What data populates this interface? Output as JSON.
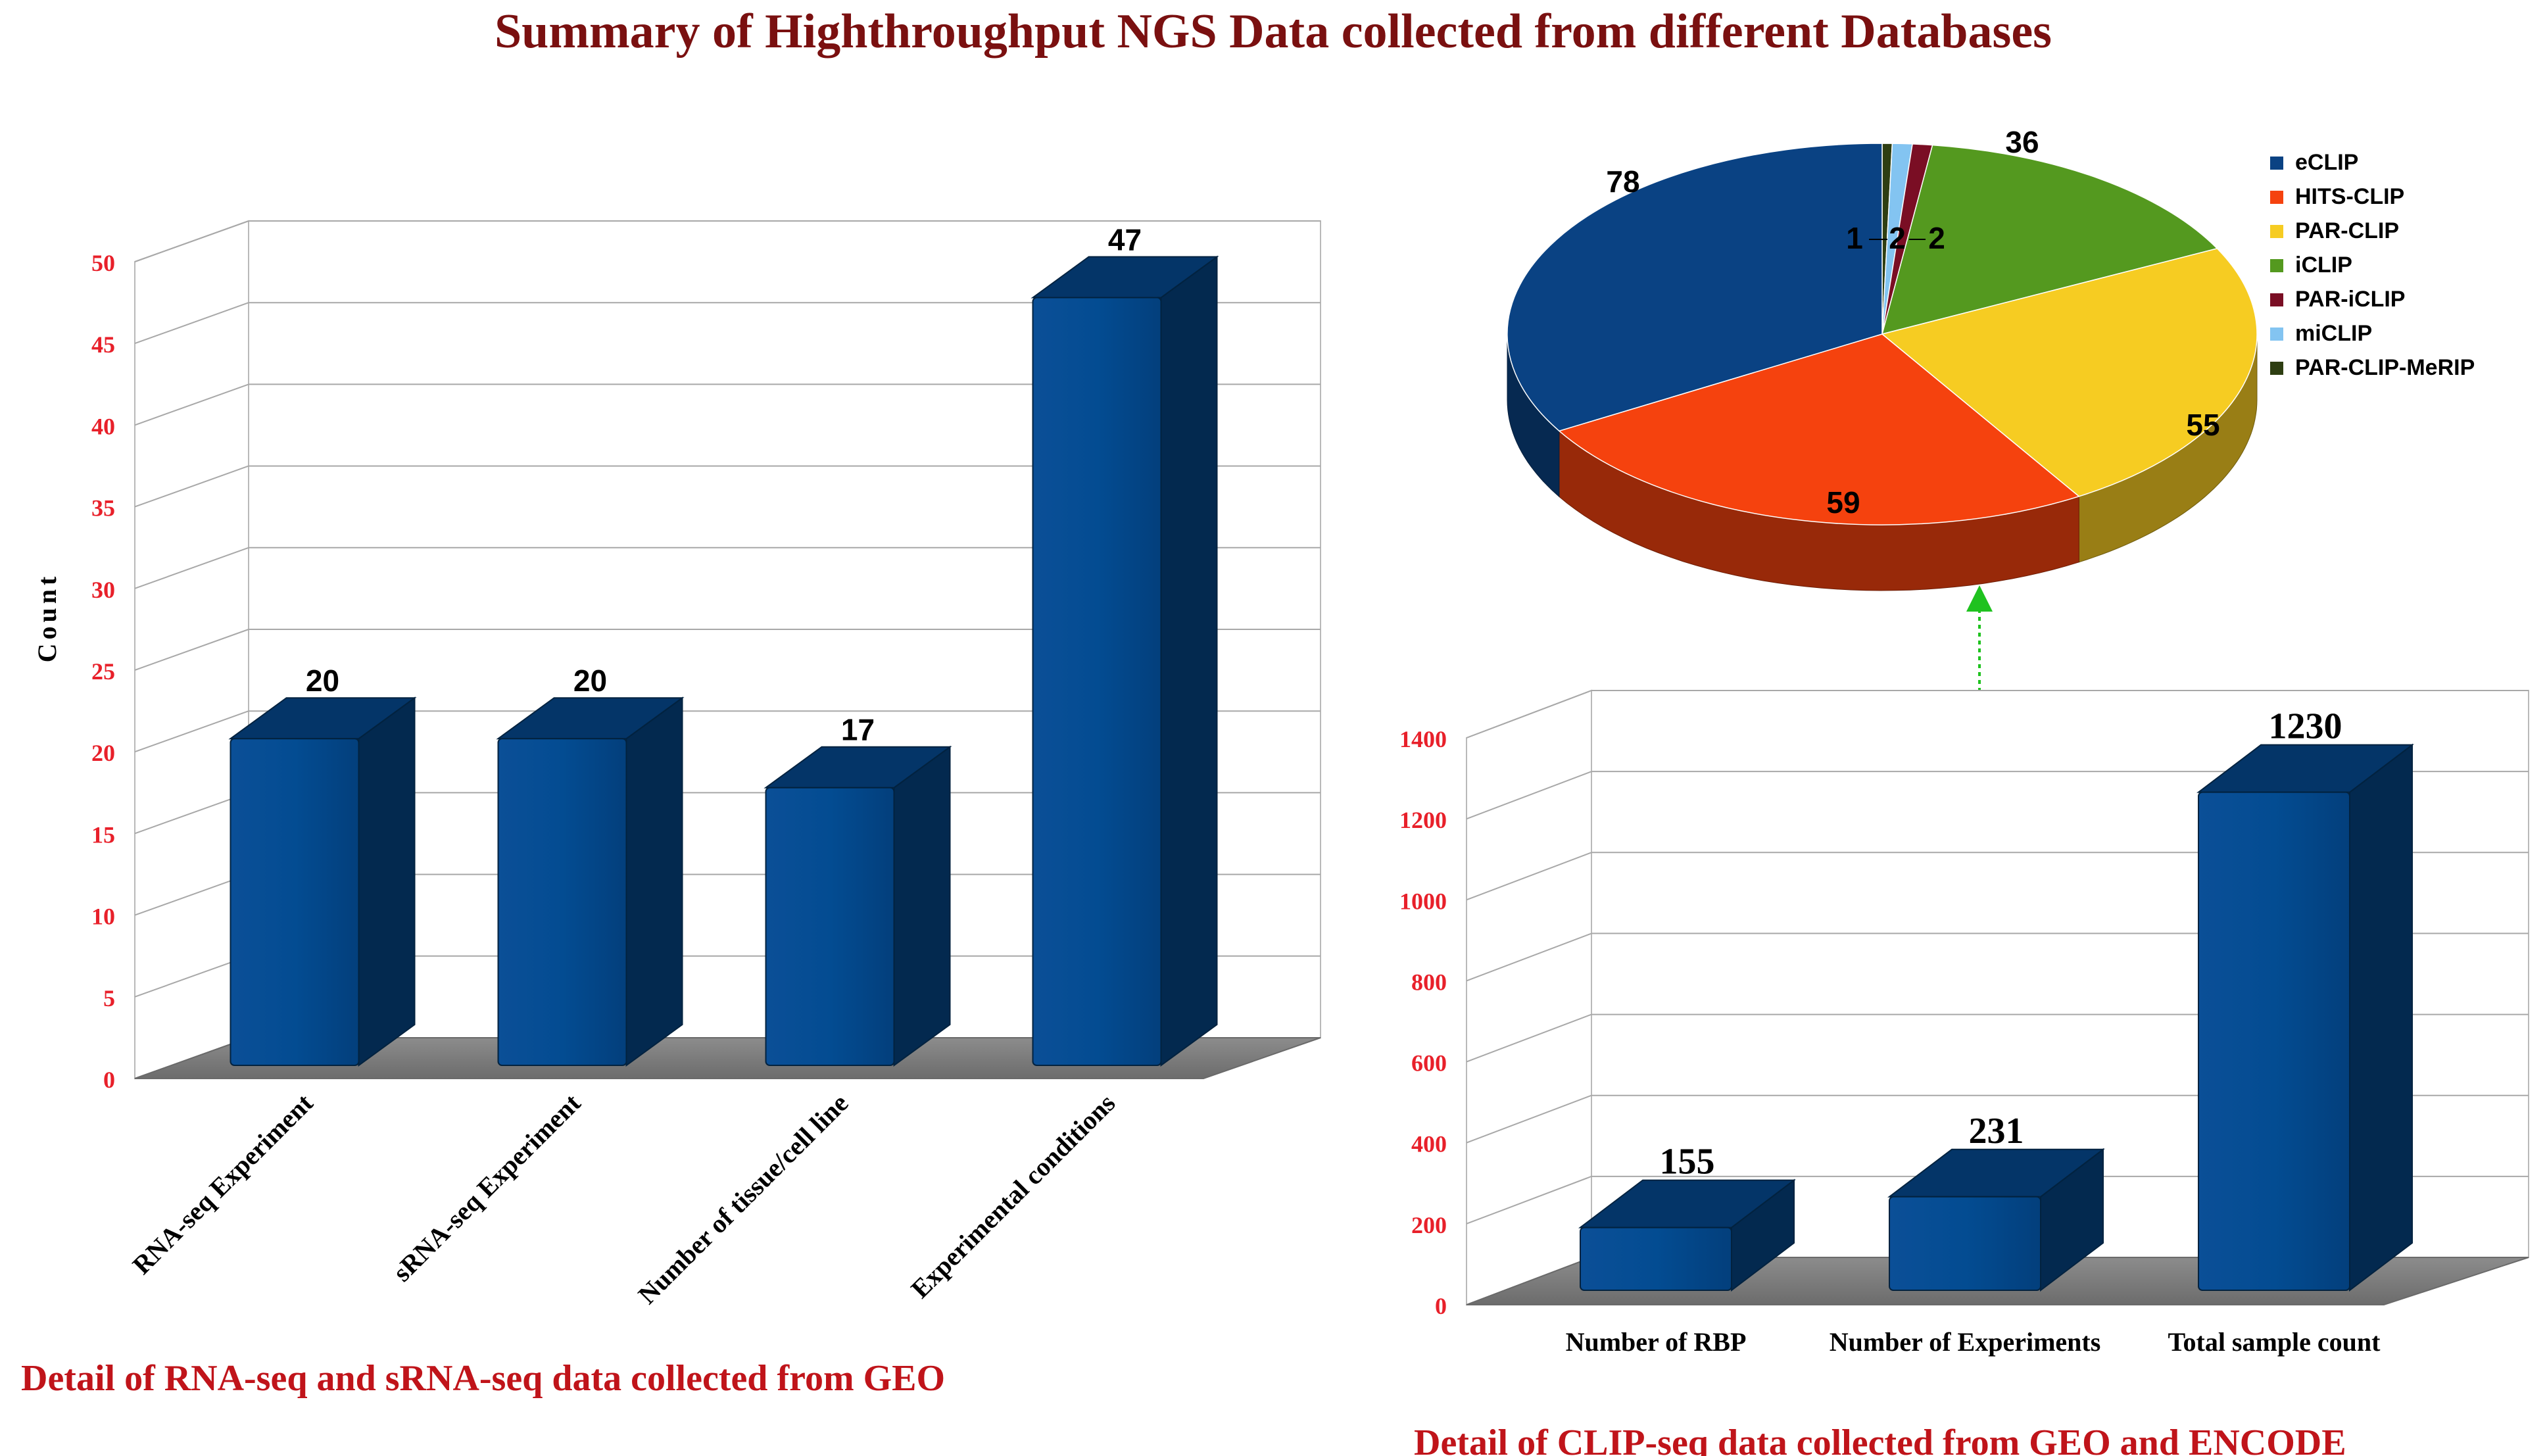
{
  "page": {
    "title": "Summary of Highthroughput NGS Data collected from different Databases",
    "title_color": "#7a1010",
    "caption_color": "#c0141a"
  },
  "chart_data": [
    {
      "type": "bar",
      "id": "geo-bar",
      "title": "",
      "caption": "Detail of RNA-seq and sRNA-seq data collected from GEO",
      "categories": [
        "RNA-seq Experiment",
        "sRNA-seq Experiment",
        "Number of tissue/cell line",
        "Experimental conditions"
      ],
      "values": [
        20,
        20,
        17,
        47
      ],
      "xlabel": "",
      "ylabel": "Count",
      "ylim": [
        0,
        50
      ],
      "yticks": [
        0,
        5,
        10,
        15,
        20,
        25,
        30,
        35,
        40,
        45,
        50
      ],
      "grid": true,
      "bar_color": "#054a90",
      "tick_color": "#e8202a"
    },
    {
      "type": "pie",
      "id": "clip-pie",
      "title": "",
      "legend_position": "right",
      "slices": [
        {
          "label": "eCLIP",
          "value": 78,
          "color": "#0a4283"
        },
        {
          "label": "HITS-CLIP",
          "value": 59,
          "color": "#f5420e"
        },
        {
          "label": "PAR-CLIP",
          "value": 55,
          "color": "#f6cc22"
        },
        {
          "label": "iCLIP",
          "value": 36,
          "color": "#54991f"
        },
        {
          "label": "PAR-iCLIP",
          "value": 2,
          "color": "#7a0e24"
        },
        {
          "label": "miCLIP",
          "value": 2,
          "color": "#83c4f1"
        },
        {
          "label": "PAR-CLIP-MeRIP",
          "value": 1,
          "color": "#2e3e12"
        }
      ]
    },
    {
      "type": "bar",
      "id": "clip-bar",
      "title": "",
      "caption": "Detail of CLIP-seq data collected from GEO and ENCODE",
      "categories": [
        "Number of RBP",
        "Number of Experiments",
        "Total sample count"
      ],
      "values": [
        155,
        231,
        1230
      ],
      "xlabel": "",
      "ylabel": "",
      "ylim": [
        0,
        1400
      ],
      "yticks": [
        0,
        200,
        400,
        600,
        800,
        1000,
        1200,
        1400
      ],
      "grid": true,
      "bar_color": "#054a90",
      "tick_color": "#e8202a",
      "arrow_color": "#1fc21f"
    }
  ]
}
